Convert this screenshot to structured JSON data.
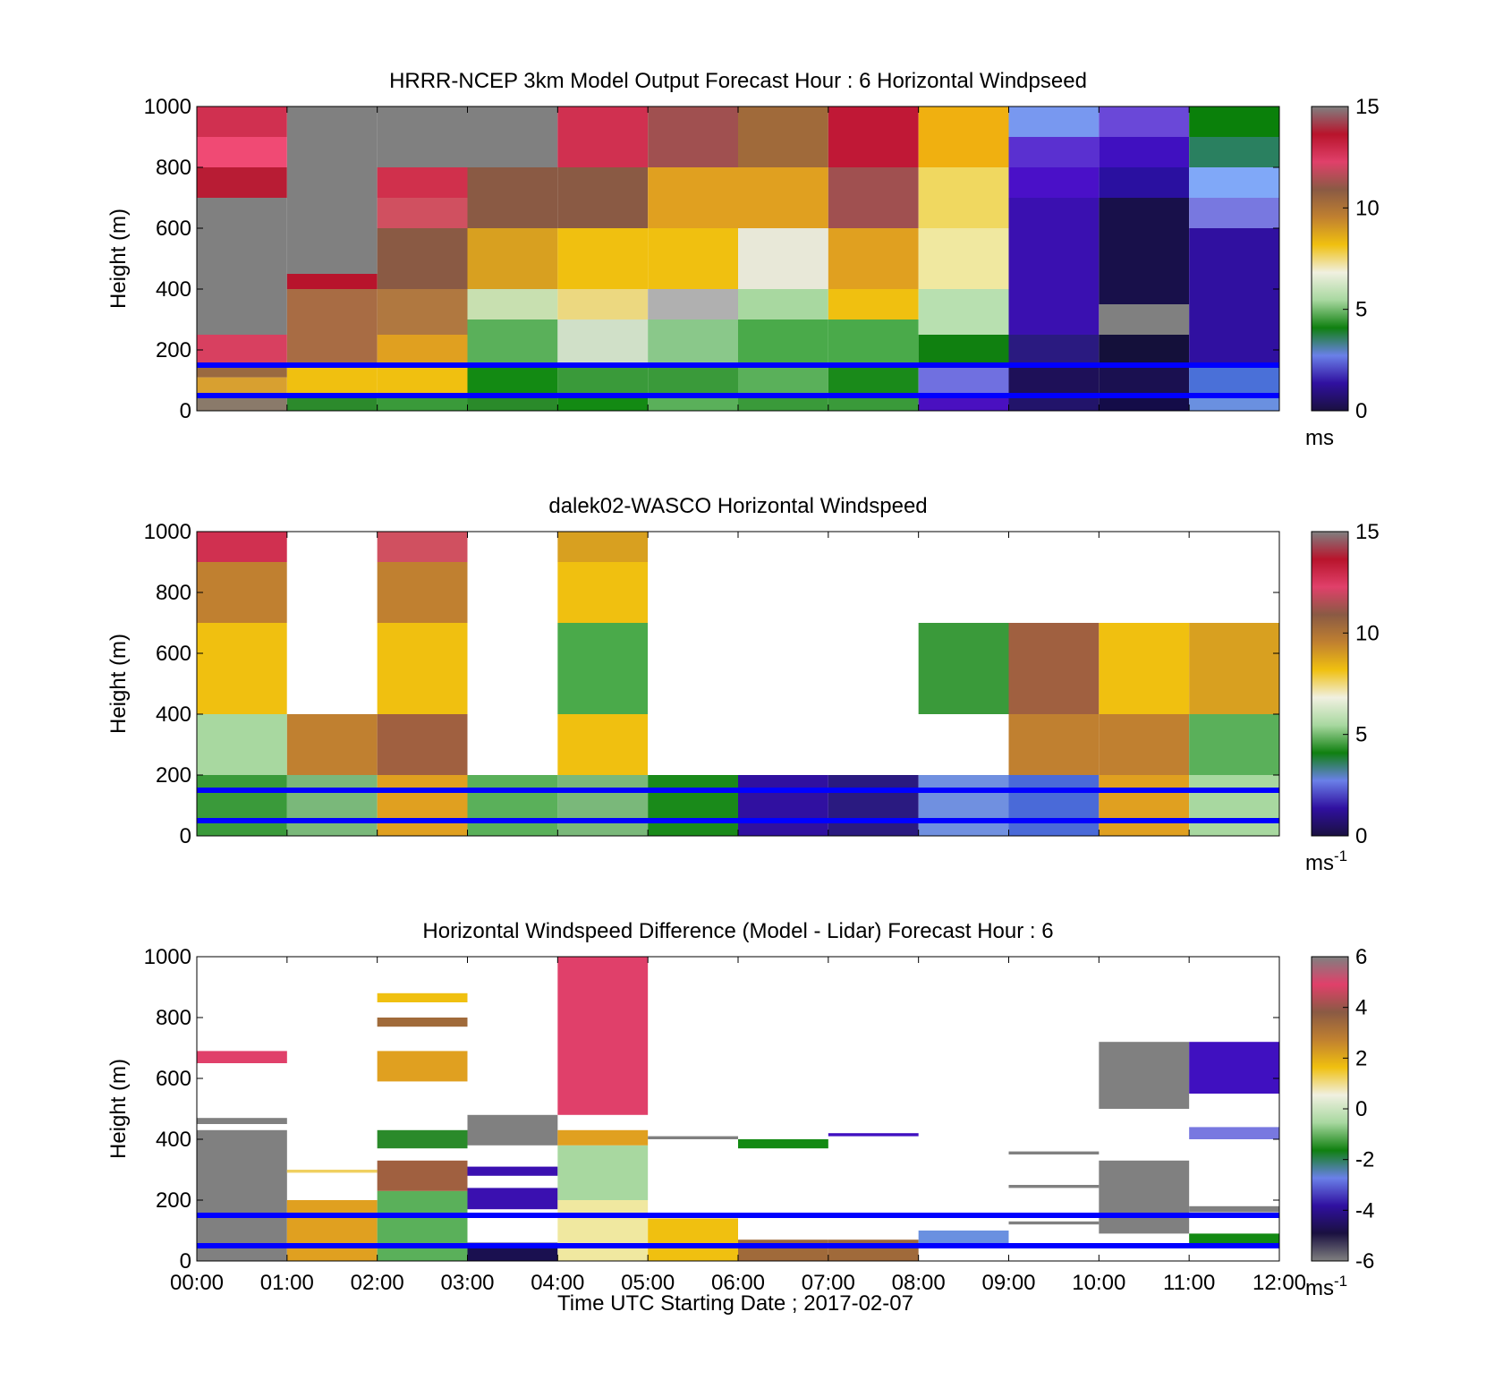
{
  "figure": {
    "xlabel": "Time UTC  Starting Date ; 2017-02-07",
    "xticks": [
      "00:00",
      "01:00",
      "02:00",
      "03:00",
      "04:00",
      "05:00",
      "06:00",
      "07:00",
      "08:00",
      "09:00",
      "10:00",
      "11:00",
      "12:00"
    ]
  },
  "chart_data": [
    {
      "type": "heatmap",
      "title": "HRRR-NCEP 3km Model Output   Forecast Hour : 6 Horizontal Windpseed",
      "ylabel": "Height (m)",
      "ylim": [
        0,
        1000
      ],
      "yticks": [
        "0",
        "200",
        "400",
        "600",
        "800",
        "1000"
      ],
      "x_edges_hours": [
        0,
        1,
        2,
        3,
        4,
        5,
        6,
        7,
        8,
        9,
        10,
        11,
        12
      ],
      "colorbar": {
        "min": 0,
        "max": 15,
        "ticks": [
          "0",
          "5",
          "10",
          "15"
        ],
        "unit": "ms"
      },
      "reference_lines_m": [
        150,
        50
      ],
      "reference_line_color": "#0000ff",
      "columns": [
        [
          [
            0,
            50,
            "#8a7a6a"
          ],
          [
            50,
            110,
            "#d8a030"
          ],
          [
            110,
            150,
            "#9a6a40"
          ],
          [
            150,
            250,
            "#d84060"
          ],
          [
            250,
            700,
            "#808080"
          ],
          [
            700,
            800,
            "#b81c34"
          ],
          [
            800,
            900,
            "#f04a74"
          ],
          [
            900,
            1000,
            "#d03050"
          ]
        ],
        [
          [
            0,
            50,
            "#2c8a2c"
          ],
          [
            50,
            150,
            "#f0c010"
          ],
          [
            150,
            400,
            "#a86c44"
          ],
          [
            400,
            450,
            "#b8142c"
          ],
          [
            450,
            1000,
            "#808080"
          ]
        ],
        [
          [
            0,
            50,
            "#3a9a3a"
          ],
          [
            50,
            150,
            "#f0c010"
          ],
          [
            150,
            250,
            "#e0a020"
          ],
          [
            250,
            400,
            "#b07840"
          ],
          [
            400,
            600,
            "#8a5a44"
          ],
          [
            600,
            700,
            "#d05060"
          ],
          [
            700,
            800,
            "#d0304c"
          ],
          [
            800,
            1000,
            "#808080"
          ]
        ],
        [
          [
            0,
            50,
            "#2a8a2a"
          ],
          [
            50,
            150,
            "#138a13"
          ],
          [
            150,
            300,
            "#5ab05a"
          ],
          [
            300,
            400,
            "#c8e0b0"
          ],
          [
            400,
            600,
            "#d8a020"
          ],
          [
            600,
            800,
            "#8a5a44"
          ],
          [
            800,
            1000,
            "#808080"
          ]
        ],
        [
          [
            0,
            50,
            "#138a13"
          ],
          [
            50,
            150,
            "#3a9a3a"
          ],
          [
            150,
            300,
            "#d0e0c8"
          ],
          [
            300,
            400,
            "#ecd880"
          ],
          [
            400,
            600,
            "#f0c010"
          ],
          [
            600,
            800,
            "#8a5a44"
          ],
          [
            800,
            1000,
            "#d03050"
          ]
        ],
        [
          [
            0,
            50,
            "#5ab05a"
          ],
          [
            50,
            150,
            "#3a9a3a"
          ],
          [
            150,
            300,
            "#8ac88a"
          ],
          [
            300,
            400,
            "#b0b0b0"
          ],
          [
            400,
            600,
            "#f0c010"
          ],
          [
            600,
            800,
            "#e0a020"
          ],
          [
            800,
            1000,
            "#a05050"
          ]
        ],
        [
          [
            0,
            50,
            "#3a9a3a"
          ],
          [
            50,
            150,
            "#5ab05a"
          ],
          [
            150,
            300,
            "#4aaa4a"
          ],
          [
            300,
            400,
            "#a8d8a0"
          ],
          [
            400,
            600,
            "#e8e8d8"
          ],
          [
            600,
            800,
            "#e0a020"
          ],
          [
            800,
            1000,
            "#a06a3a"
          ]
        ],
        [
          [
            0,
            50,
            "#3a9a3a"
          ],
          [
            50,
            150,
            "#1a8a1a"
          ],
          [
            150,
            300,
            "#4aaa4a"
          ],
          [
            300,
            400,
            "#f0c010"
          ],
          [
            400,
            600,
            "#e0a020"
          ],
          [
            600,
            800,
            "#a05050"
          ],
          [
            800,
            1000,
            "#c01836"
          ]
        ],
        [
          [
            0,
            50,
            "#4a10c0"
          ],
          [
            50,
            150,
            "#7070e0"
          ],
          [
            150,
            250,
            "#108010"
          ],
          [
            250,
            400,
            "#b8e0b0"
          ],
          [
            400,
            600,
            "#f0e8a0"
          ],
          [
            600,
            800,
            "#f0d860"
          ],
          [
            800,
            1000,
            "#f0b010"
          ]
        ],
        [
          [
            0,
            50,
            "#22146a"
          ],
          [
            50,
            150,
            "#1e1058"
          ],
          [
            150,
            250,
            "#2a1a80"
          ],
          [
            250,
            700,
            "#3a10b0"
          ],
          [
            700,
            800,
            "#4a10c8"
          ],
          [
            800,
            900,
            "#5a30d0"
          ],
          [
            900,
            1000,
            "#7898f0"
          ]
        ],
        [
          [
            0,
            50,
            "#140c48"
          ],
          [
            50,
            150,
            "#1a1050"
          ],
          [
            150,
            250,
            "#14103a"
          ],
          [
            250,
            350,
            "#808080"
          ],
          [
            350,
            700,
            "#18104a"
          ],
          [
            700,
            800,
            "#2a10a0"
          ],
          [
            800,
            900,
            "#4010c0"
          ],
          [
            900,
            1000,
            "#6a48d8"
          ]
        ],
        [
          [
            0,
            50,
            "#6a90e0"
          ],
          [
            50,
            150,
            "#4a70d8"
          ],
          [
            150,
            600,
            "#3010a0"
          ],
          [
            600,
            700,
            "#7878e0"
          ],
          [
            700,
            800,
            "#80a8f8"
          ],
          [
            800,
            900,
            "#2a8060"
          ],
          [
            900,
            1000,
            "#0a800a"
          ]
        ]
      ]
    },
    {
      "type": "heatmap",
      "title": "dalek02-WASCO  Horizontal Windspeed",
      "ylabel": "Height (m)",
      "ylim": [
        0,
        1000
      ],
      "yticks": [
        "0",
        "200",
        "400",
        "600",
        "800",
        "1000"
      ],
      "x_edges_hours": [
        0,
        1,
        2,
        3,
        4,
        5,
        6,
        7,
        8,
        9,
        10,
        11,
        12
      ],
      "colorbar": {
        "min": 0,
        "max": 15,
        "ticks": [
          "0",
          "5",
          "10",
          "15"
        ],
        "unit": "ms",
        "unit_exponent": "-1"
      },
      "reference_lines_m": [
        150,
        50
      ],
      "reference_line_color": "#0000ff",
      "columns": [
        [
          [
            0,
            200,
            "#3a9a3a"
          ],
          [
            200,
            400,
            "#a8d8a0"
          ],
          [
            400,
            700,
            "#f0c010"
          ],
          [
            700,
            900,
            "#c08030"
          ],
          [
            900,
            1000,
            "#d03050"
          ]
        ],
        [
          [
            0,
            200,
            "#7ab87a"
          ],
          [
            200,
            400,
            "#c08030"
          ],
          [
            400,
            700,
            "#ffffff"
          ],
          [
            700,
            900,
            "#ffffff"
          ],
          [
            900,
            1000,
            "#ffffff"
          ]
        ],
        [
          [
            0,
            200,
            "#e0a020"
          ],
          [
            200,
            400,
            "#a06040"
          ],
          [
            400,
            700,
            "#f0c010"
          ],
          [
            700,
            900,
            "#c08030"
          ],
          [
            900,
            1000,
            "#d05060"
          ]
        ],
        [
          [
            0,
            200,
            "#5ab05a"
          ],
          [
            200,
            400,
            "#ffffff"
          ],
          [
            400,
            700,
            "#ffffff"
          ],
          [
            700,
            900,
            "#ffffff"
          ],
          [
            900,
            1000,
            "#ffffff"
          ]
        ],
        [
          [
            0,
            200,
            "#7ab87a"
          ],
          [
            200,
            400,
            "#f0c010"
          ],
          [
            400,
            700,
            "#4aaa4a"
          ],
          [
            700,
            900,
            "#f0c010"
          ],
          [
            900,
            1000,
            "#d8a020"
          ]
        ],
        [
          [
            0,
            200,
            "#1a8a1a"
          ],
          [
            200,
            400,
            "#ffffff"
          ],
          [
            400,
            700,
            "#ffffff"
          ],
          [
            700,
            900,
            "#ffffff"
          ],
          [
            900,
            1000,
            "#ffffff"
          ]
        ],
        [
          [
            0,
            200,
            "#3010a0"
          ],
          [
            200,
            400,
            "#ffffff"
          ],
          [
            400,
            700,
            "#ffffff"
          ],
          [
            700,
            900,
            "#ffffff"
          ],
          [
            900,
            1000,
            "#ffffff"
          ]
        ],
        [
          [
            0,
            200,
            "#2a1a80"
          ],
          [
            200,
            400,
            "#ffffff"
          ],
          [
            400,
            700,
            "#ffffff"
          ],
          [
            700,
            900,
            "#ffffff"
          ],
          [
            900,
            1000,
            "#ffffff"
          ]
        ],
        [
          [
            0,
            200,
            "#7090e0"
          ],
          [
            200,
            400,
            "#ffffff"
          ],
          [
            400,
            700,
            "#3a9a3a"
          ],
          [
            700,
            900,
            "#ffffff"
          ],
          [
            900,
            1000,
            "#ffffff"
          ]
        ],
        [
          [
            0,
            200,
            "#4a6ad8"
          ],
          [
            200,
            400,
            "#c08030"
          ],
          [
            400,
            700,
            "#a06040"
          ],
          [
            700,
            900,
            "#ffffff"
          ],
          [
            900,
            1000,
            "#ffffff"
          ]
        ],
        [
          [
            0,
            200,
            "#e0a020"
          ],
          [
            200,
            400,
            "#c08030"
          ],
          [
            400,
            700,
            "#f0c010"
          ],
          [
            700,
            900,
            "#ffffff"
          ],
          [
            900,
            1000,
            "#ffffff"
          ]
        ],
        [
          [
            0,
            200,
            "#a8d8a0"
          ],
          [
            200,
            400,
            "#5ab05a"
          ],
          [
            400,
            700,
            "#d8a020"
          ],
          [
            700,
            900,
            "#ffffff"
          ],
          [
            900,
            1000,
            "#ffffff"
          ]
        ]
      ]
    },
    {
      "type": "heatmap",
      "title": "Horizontal Windspeed Difference (Model - Lidar) Forecast Hour : 6",
      "ylabel": "Height (m)",
      "ylim": [
        0,
        1000
      ],
      "yticks": [
        "0",
        "200",
        "400",
        "600",
        "800",
        "1000"
      ],
      "x_edges_hours": [
        0,
        1,
        2,
        3,
        4,
        5,
        6,
        7,
        8,
        9,
        10,
        11,
        12
      ],
      "colorbar": {
        "min": -6,
        "max": 6,
        "ticks": [
          "-6",
          "-4",
          "-2",
          "0",
          "2",
          "4",
          "6"
        ],
        "unit": "ms",
        "unit_exponent": "-1"
      },
      "reference_lines_m": [
        150,
        50
      ],
      "reference_line_color": "#0000ff",
      "columns": [
        [
          [
            0,
            430,
            "#808080"
          ],
          [
            450,
            470,
            "#808080"
          ],
          [
            650,
            690,
            "#e0406a"
          ]
        ],
        [
          [
            0,
            200,
            "#e0a020"
          ],
          [
            290,
            300,
            "#f0d060"
          ]
        ],
        [
          [
            0,
            230,
            "#5ab05a"
          ],
          [
            230,
            330,
            "#a06040"
          ],
          [
            370,
            430,
            "#2a8a2a"
          ],
          [
            590,
            690,
            "#e0a020"
          ],
          [
            770,
            800,
            "#a06a3a"
          ],
          [
            850,
            880,
            "#f0c010"
          ]
        ],
        [
          [
            0,
            60,
            "#1a1050"
          ],
          [
            170,
            240,
            "#3a10b0"
          ],
          [
            280,
            310,
            "#3a10b0"
          ],
          [
            380,
            480,
            "#808080"
          ]
        ],
        [
          [
            0,
            200,
            "#f0e8a0"
          ],
          [
            200,
            380,
            "#a8d8a0"
          ],
          [
            380,
            430,
            "#e0a020"
          ],
          [
            480,
            1000,
            "#e0406a"
          ]
        ],
        [
          [
            0,
            140,
            "#f0c010"
          ],
          [
            400,
            410,
            "#808080"
          ]
        ],
        [
          [
            0,
            70,
            "#a06a3a"
          ],
          [
            370,
            400,
            "#138a13"
          ]
        ],
        [
          [
            0,
            70,
            "#a06a3a"
          ],
          [
            410,
            420,
            "#4010c0"
          ]
        ],
        [
          [
            50,
            100,
            "#6a90e0"
          ]
        ],
        [
          [
            120,
            130,
            "#808080"
          ],
          [
            240,
            250,
            "#808080"
          ],
          [
            350,
            360,
            "#808080"
          ]
        ],
        [
          [
            90,
            330,
            "#808080"
          ],
          [
            500,
            720,
            "#808080"
          ]
        ],
        [
          [
            50,
            90,
            "#138a13"
          ],
          [
            160,
            180,
            "#808080"
          ],
          [
            400,
            440,
            "#7878e0"
          ],
          [
            550,
            720,
            "#4010c0"
          ]
        ]
      ]
    }
  ]
}
